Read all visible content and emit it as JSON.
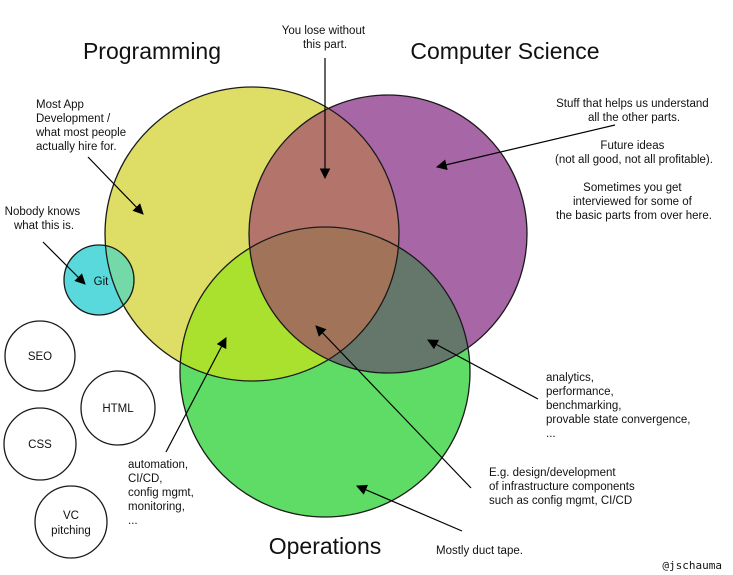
{
  "titles": {
    "programming": "Programming",
    "computer_science": "Computer Science",
    "operations": "Operations"
  },
  "labels": {
    "git": "Git",
    "seo": "SEO",
    "html": "HTML",
    "css": "CSS",
    "vc_line1": "VC",
    "vc_line2": "pitching"
  },
  "annotations": {
    "center_top": [
      "You lose without",
      "this part."
    ],
    "app_dev": [
      "Most App",
      "Development /",
      "what most people",
      "actually hire for."
    ],
    "nobody": [
      "Nobody knows",
      "what this is."
    ],
    "cs_a": [
      "Stuff that helps us understand",
      "all the other parts."
    ],
    "cs_b": [
      "Future ideas",
      "(not all good, not all profitable)."
    ],
    "cs_c": [
      "Sometimes you get",
      "interviewed for some of",
      "the basic parts from over here."
    ],
    "analytics": [
      "analytics,",
      "performance,",
      "benchmarking,",
      "provable state convergence,",
      "..."
    ],
    "automation": [
      "automation,",
      "CI/CD,",
      "config mgmt,",
      "monitoring,",
      "..."
    ],
    "infra": [
      "E.g. design/development",
      "of infrastructure components",
      "such as config mgmt, CI/CD"
    ],
    "duct_tape": "Mostly duct tape.",
    "credit": "@jschauma"
  },
  "colors": {
    "programming": "#dede66",
    "computer_science": "#a766a6",
    "operations": "#5fdc66",
    "git": "#5ad9dc"
  }
}
